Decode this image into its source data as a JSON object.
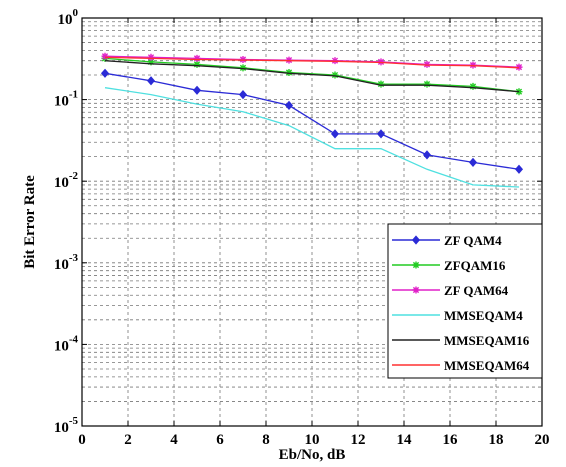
{
  "chart_data": {
    "type": "line",
    "xlabel": "Eb/No, dB",
    "ylabel": "Bit Error Rate",
    "xlim": [
      0,
      20
    ],
    "ylim_exponents": [
      -5,
      0
    ],
    "y_scale": "log",
    "grid": true,
    "legend_position": "bottom-right",
    "x_ticks": [
      "0",
      "2",
      "4",
      "6",
      "8",
      "10",
      "12",
      "14",
      "16",
      "18",
      "20"
    ],
    "y_ticks": [
      {
        "base": "10",
        "exp": "0"
      },
      {
        "base": "10",
        "exp": "-1"
      },
      {
        "base": "10",
        "exp": "-2"
      },
      {
        "base": "10",
        "exp": "-3"
      },
      {
        "base": "10",
        "exp": "-4"
      },
      {
        "base": "10",
        "exp": "-5"
      }
    ],
    "x": [
      1,
      3,
      5,
      7,
      9,
      11,
      13,
      15,
      17,
      19
    ],
    "series": [
      {
        "name": "ZF QAM4",
        "color": "#2b2bd6",
        "marker": "diamond",
        "values": [
          0.21,
          0.17,
          0.13,
          0.115,
          0.085,
          0.038,
          0.038,
          0.021,
          0.017,
          0.014
        ]
      },
      {
        "name": "ZFQAM16",
        "color": "#22cc22",
        "marker": "star",
        "values": [
          0.32,
          0.29,
          0.27,
          0.245,
          0.215,
          0.2,
          0.155,
          0.155,
          0.145,
          0.125
        ]
      },
      {
        "name": "ZF QAM64",
        "color": "#e020c8",
        "marker": "star",
        "values": [
          0.34,
          0.33,
          0.32,
          0.31,
          0.305,
          0.3,
          0.29,
          0.27,
          0.265,
          0.25
        ]
      },
      {
        "name": "MMSEQAM4",
        "color": "#4fe0e0",
        "marker": "none",
        "values": [
          0.14,
          0.115,
          0.088,
          0.071,
          0.048,
          0.025,
          0.025,
          0.014,
          0.009,
          0.0085
        ]
      },
      {
        "name": "MMSEQAM16",
        "color": "#222222",
        "marker": "none",
        "values": [
          0.3,
          0.275,
          0.26,
          0.24,
          0.21,
          0.195,
          0.15,
          0.15,
          0.14,
          0.125
        ]
      },
      {
        "name": "MMSEQAM64",
        "color": "#ff3030",
        "marker": "none",
        "values": [
          0.33,
          0.32,
          0.31,
          0.305,
          0.3,
          0.295,
          0.285,
          0.265,
          0.26,
          0.245
        ]
      }
    ]
  }
}
